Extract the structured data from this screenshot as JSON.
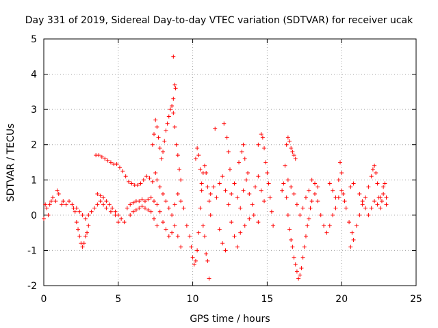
{
  "chart_data": {
    "type": "scatter",
    "title": "Day 331 of 2019, Sidereal Day-to-day VTEC variation (SDTVAR) for receiver ucak",
    "xlabel": "GPS time / hours",
    "ylabel": "SDTVAR / TECUs",
    "xlim": [
      0,
      25
    ],
    "ylim": [
      -2,
      5
    ],
    "xticks": [
      0,
      5,
      10,
      15,
      20,
      25
    ],
    "yticks": [
      -2,
      -1,
      0,
      1,
      2,
      3,
      4,
      5
    ],
    "grid": true,
    "marker": "+",
    "series": [
      {
        "name": "SDTVAR",
        "color": "#ff0000",
        "points": [
          [
            0.0,
            -0.1
          ],
          [
            0.1,
            0.3
          ],
          [
            0.2,
            0.2
          ],
          [
            0.3,
            0.0
          ],
          [
            0.4,
            0.3
          ],
          [
            0.5,
            0.4
          ],
          [
            0.6,
            0.5
          ],
          [
            0.8,
            0.4
          ],
          [
            0.9,
            0.7
          ],
          [
            1.0,
            0.6
          ],
          [
            1.2,
            0.3
          ],
          [
            1.3,
            0.4
          ],
          [
            1.5,
            0.3
          ],
          [
            1.7,
            0.4
          ],
          [
            1.9,
            0.3
          ],
          [
            2.0,
            0.2
          ],
          [
            2.1,
            0.1
          ],
          [
            2.2,
            -0.2
          ],
          [
            2.3,
            -0.4
          ],
          [
            2.4,
            -0.6
          ],
          [
            2.5,
            -0.8
          ],
          [
            2.6,
            -0.9
          ],
          [
            2.7,
            -0.8
          ],
          [
            2.8,
            -0.6
          ],
          [
            2.9,
            -0.5
          ],
          [
            3.0,
            -0.3
          ],
          [
            2.2,
            0.2
          ],
          [
            2.4,
            0.1
          ],
          [
            2.6,
            0.0
          ],
          [
            2.8,
            -0.1
          ],
          [
            3.0,
            0.0
          ],
          [
            3.2,
            0.1
          ],
          [
            3.4,
            0.2
          ],
          [
            3.6,
            0.3
          ],
          [
            3.8,
            0.4
          ],
          [
            4.0,
            0.3
          ],
          [
            4.2,
            0.2
          ],
          [
            4.5,
            0.1
          ],
          [
            4.8,
            0.0
          ],
          [
            5.0,
            -0.2
          ],
          [
            3.5,
            1.7
          ],
          [
            3.7,
            1.7
          ],
          [
            3.9,
            1.65
          ],
          [
            4.1,
            1.6
          ],
          [
            4.3,
            1.55
          ],
          [
            4.5,
            1.5
          ],
          [
            4.7,
            1.45
          ],
          [
            4.9,
            1.45
          ],
          [
            5.1,
            1.35
          ],
          [
            5.3,
            1.25
          ],
          [
            5.5,
            1.1
          ],
          [
            5.7,
            0.95
          ],
          [
            5.9,
            0.9
          ],
          [
            6.1,
            0.85
          ],
          [
            6.3,
            0.85
          ],
          [
            6.5,
            0.9
          ],
          [
            6.7,
            1.0
          ],
          [
            6.9,
            1.1
          ],
          [
            7.1,
            1.05
          ],
          [
            7.3,
            0.95
          ],
          [
            3.6,
            0.6
          ],
          [
            3.8,
            0.55
          ],
          [
            4.0,
            0.5
          ],
          [
            4.2,
            0.4
          ],
          [
            4.4,
            0.3
          ],
          [
            4.6,
            0.2
          ],
          [
            4.8,
            0.1
          ],
          [
            5.0,
            0.0
          ],
          [
            5.2,
            -0.1
          ],
          [
            5.4,
            -0.2
          ],
          [
            5.6,
            0.2
          ],
          [
            5.8,
            0.3
          ],
          [
            6.0,
            0.35
          ],
          [
            6.2,
            0.4
          ],
          [
            6.4,
            0.4
          ],
          [
            6.6,
            0.45
          ],
          [
            6.8,
            0.4
          ],
          [
            7.0,
            0.45
          ],
          [
            7.2,
            0.5
          ],
          [
            7.4,
            0.4
          ],
          [
            5.8,
            0.0
          ],
          [
            6.0,
            0.1
          ],
          [
            6.2,
            0.15
          ],
          [
            6.4,
            0.2
          ],
          [
            6.6,
            0.25
          ],
          [
            6.8,
            0.2
          ],
          [
            7.0,
            0.15
          ],
          [
            7.2,
            0.1
          ],
          [
            7.4,
            -0.1
          ],
          [
            7.6,
            -0.3
          ],
          [
            7.3,
            2.0
          ],
          [
            7.4,
            2.3
          ],
          [
            7.5,
            2.7
          ],
          [
            7.6,
            2.5
          ],
          [
            7.7,
            2.2
          ],
          [
            7.8,
            1.9
          ],
          [
            7.9,
            1.6
          ],
          [
            8.0,
            1.8
          ],
          [
            8.1,
            2.1
          ],
          [
            8.2,
            2.4
          ],
          [
            8.3,
            2.6
          ],
          [
            8.4,
            2.8
          ],
          [
            8.5,
            3.0
          ],
          [
            8.6,
            3.1
          ],
          [
            8.7,
            2.9
          ],
          [
            8.8,
            2.5
          ],
          [
            8.9,
            2.0
          ],
          [
            9.0,
            1.7
          ],
          [
            9.1,
            1.3
          ],
          [
            9.2,
            1.0
          ],
          [
            7.5,
            1.2
          ],
          [
            7.6,
            1.0
          ],
          [
            7.8,
            0.8
          ],
          [
            8.0,
            0.6
          ],
          [
            8.2,
            0.4
          ],
          [
            8.4,
            0.2
          ],
          [
            8.6,
            0.0
          ],
          [
            8.8,
            -0.3
          ],
          [
            9.0,
            -0.6
          ],
          [
            9.2,
            -0.9
          ],
          [
            7.6,
            0.3
          ],
          [
            7.8,
            0.1
          ],
          [
            8.0,
            -0.2
          ],
          [
            8.2,
            -0.4
          ],
          [
            8.4,
            -0.6
          ],
          [
            8.6,
            -0.5
          ],
          [
            8.8,
            0.3
          ],
          [
            9.0,
            0.6
          ],
          [
            9.2,
            0.4
          ],
          [
            9.4,
            0.2
          ],
          [
            8.7,
            4.5
          ],
          [
            8.8,
            3.7
          ],
          [
            8.85,
            3.6
          ],
          [
            8.7,
            3.3
          ],
          [
            9.6,
            -0.3
          ],
          [
            9.8,
            -0.6
          ],
          [
            9.9,
            -0.9
          ],
          [
            10.0,
            -1.2
          ],
          [
            10.1,
            -1.4
          ],
          [
            10.2,
            -1.3
          ],
          [
            10.3,
            -1.0
          ],
          [
            10.4,
            -0.5
          ],
          [
            10.5,
            0.2
          ],
          [
            10.6,
            0.7
          ],
          [
            10.7,
            1.2
          ],
          [
            10.8,
            1.4
          ],
          [
            10.9,
            1.2
          ],
          [
            11.0,
            0.8
          ],
          [
            11.1,
            0.4
          ],
          [
            11.2,
            0.0
          ],
          [
            10.2,
            1.6
          ],
          [
            10.3,
            1.9
          ],
          [
            10.4,
            1.7
          ],
          [
            10.5,
            1.3
          ],
          [
            10.6,
            0.9
          ],
          [
            10.7,
            -0.3
          ],
          [
            10.8,
            -0.6
          ],
          [
            10.9,
            -1.1
          ],
          [
            11.0,
            -1.3
          ],
          [
            11.1,
            -1.8
          ],
          [
            11.2,
            0.6
          ],
          [
            11.4,
            0.8
          ],
          [
            11.6,
            0.5
          ],
          [
            11.8,
            0.9
          ],
          [
            12.0,
            1.1
          ],
          [
            12.2,
            0.7
          ],
          [
            12.4,
            0.3
          ],
          [
            12.6,
            -0.2
          ],
          [
            12.8,
            -0.6
          ],
          [
            13.0,
            -0.9
          ],
          [
            11.5,
            2.45
          ],
          [
            12.1,
            2.6
          ],
          [
            12.3,
            2.2
          ],
          [
            12.4,
            1.8
          ],
          [
            12.5,
            1.3
          ],
          [
            11.8,
            -0.4
          ],
          [
            12.0,
            -0.8
          ],
          [
            12.2,
            -1.0
          ],
          [
            12.6,
            0.6
          ],
          [
            12.8,
            0.9
          ],
          [
            13.0,
            0.5
          ],
          [
            13.2,
            0.2
          ],
          [
            13.4,
            0.7
          ],
          [
            13.6,
            1.0
          ],
          [
            13.8,
            0.6
          ],
          [
            14.0,
            0.3
          ],
          [
            14.2,
            0.8
          ],
          [
            14.4,
            1.1
          ],
          [
            14.6,
            0.7
          ],
          [
            14.8,
            0.4
          ],
          [
            13.1,
            1.5
          ],
          [
            13.3,
            1.8
          ],
          [
            13.4,
            2.0
          ],
          [
            13.5,
            1.6
          ],
          [
            13.7,
            1.2
          ],
          [
            14.4,
            2.0
          ],
          [
            14.6,
            2.3
          ],
          [
            14.7,
            2.2
          ],
          [
            14.8,
            1.9
          ],
          [
            14.9,
            1.5
          ],
          [
            15.0,
            1.2
          ],
          [
            15.1,
            0.9
          ],
          [
            15.2,
            0.5
          ],
          [
            15.3,
            0.1
          ],
          [
            15.4,
            -0.3
          ],
          [
            13.2,
            -0.5
          ],
          [
            13.5,
            -0.3
          ],
          [
            13.8,
            -0.1
          ],
          [
            14.1,
            0.0
          ],
          [
            14.4,
            -0.2
          ],
          [
            16.0,
            0.7
          ],
          [
            16.1,
            0.9
          ],
          [
            16.2,
            1.4
          ],
          [
            16.3,
            2.0
          ],
          [
            16.4,
            2.2
          ],
          [
            16.5,
            2.1
          ],
          [
            16.6,
            1.9
          ],
          [
            16.7,
            1.8
          ],
          [
            16.8,
            1.7
          ],
          [
            16.9,
            1.6
          ],
          [
            16.3,
            0.5
          ],
          [
            16.4,
            0.0
          ],
          [
            16.5,
            -0.4
          ],
          [
            16.6,
            -0.7
          ],
          [
            16.7,
            -0.9
          ],
          [
            16.8,
            -1.2
          ],
          [
            16.9,
            -1.4
          ],
          [
            17.0,
            -1.6
          ],
          [
            17.1,
            -1.8
          ],
          [
            17.2,
            -1.7
          ],
          [
            17.3,
            -1.5
          ],
          [
            17.4,
            -1.2
          ],
          [
            17.5,
            -0.9
          ],
          [
            17.6,
            -0.6
          ],
          [
            17.7,
            -0.3
          ],
          [
            17.8,
            -0.1
          ],
          [
            17.9,
            0.2
          ],
          [
            18.0,
            0.4
          ],
          [
            18.2,
            0.6
          ],
          [
            18.4,
            0.8
          ],
          [
            16.4,
            1.0
          ],
          [
            16.6,
            0.8
          ],
          [
            16.8,
            0.6
          ],
          [
            17.0,
            0.3
          ],
          [
            17.2,
            0.0
          ],
          [
            17.4,
            0.2
          ],
          [
            17.6,
            0.5
          ],
          [
            17.8,
            0.7
          ],
          [
            18.0,
            1.0
          ],
          [
            18.2,
            0.9
          ],
          [
            18.4,
            0.4
          ],
          [
            18.6,
            0.0
          ],
          [
            18.8,
            -0.3
          ],
          [
            19.0,
            -0.5
          ],
          [
            19.2,
            -0.3
          ],
          [
            19.4,
            0.0
          ],
          [
            19.6,
            0.2
          ],
          [
            19.8,
            0.5
          ],
          [
            20.0,
            0.7
          ],
          [
            20.2,
            0.4
          ],
          [
            19.2,
            0.9
          ],
          [
            19.4,
            0.7
          ],
          [
            19.6,
            0.5
          ],
          [
            19.8,
            1.0
          ],
          [
            19.9,
            1.5
          ],
          [
            20.0,
            1.2
          ],
          [
            20.1,
            0.6
          ],
          [
            20.3,
            0.2
          ],
          [
            20.5,
            -0.2
          ],
          [
            20.7,
            -0.5
          ],
          [
            20.6,
            -0.9
          ],
          [
            20.8,
            -0.7
          ],
          [
            21.0,
            -0.3
          ],
          [
            21.2,
            0.0
          ],
          [
            21.4,
            0.3
          ],
          [
            21.6,
            0.5
          ],
          [
            21.8,
            0.8
          ],
          [
            22.0,
            1.1
          ],
          [
            22.1,
            1.3
          ],
          [
            22.2,
            1.4
          ],
          [
            22.3,
            1.2
          ],
          [
            22.4,
            0.9
          ],
          [
            22.5,
            0.5
          ],
          [
            22.6,
            0.2
          ],
          [
            22.7,
            0.4
          ],
          [
            22.8,
            0.8
          ],
          [
            22.9,
            0.9
          ],
          [
            23.0,
            0.5
          ],
          [
            20.6,
            0.8
          ],
          [
            20.8,
            0.9
          ],
          [
            21.2,
            0.6
          ],
          [
            21.4,
            0.4
          ],
          [
            21.6,
            0.2
          ],
          [
            21.8,
            0.0
          ],
          [
            22.0,
            0.2
          ],
          [
            22.2,
            0.4
          ],
          [
            22.4,
            0.3
          ],
          [
            22.6,
            0.5
          ],
          [
            22.8,
            0.6
          ],
          [
            23.0,
            0.3
          ]
        ]
      }
    ]
  }
}
